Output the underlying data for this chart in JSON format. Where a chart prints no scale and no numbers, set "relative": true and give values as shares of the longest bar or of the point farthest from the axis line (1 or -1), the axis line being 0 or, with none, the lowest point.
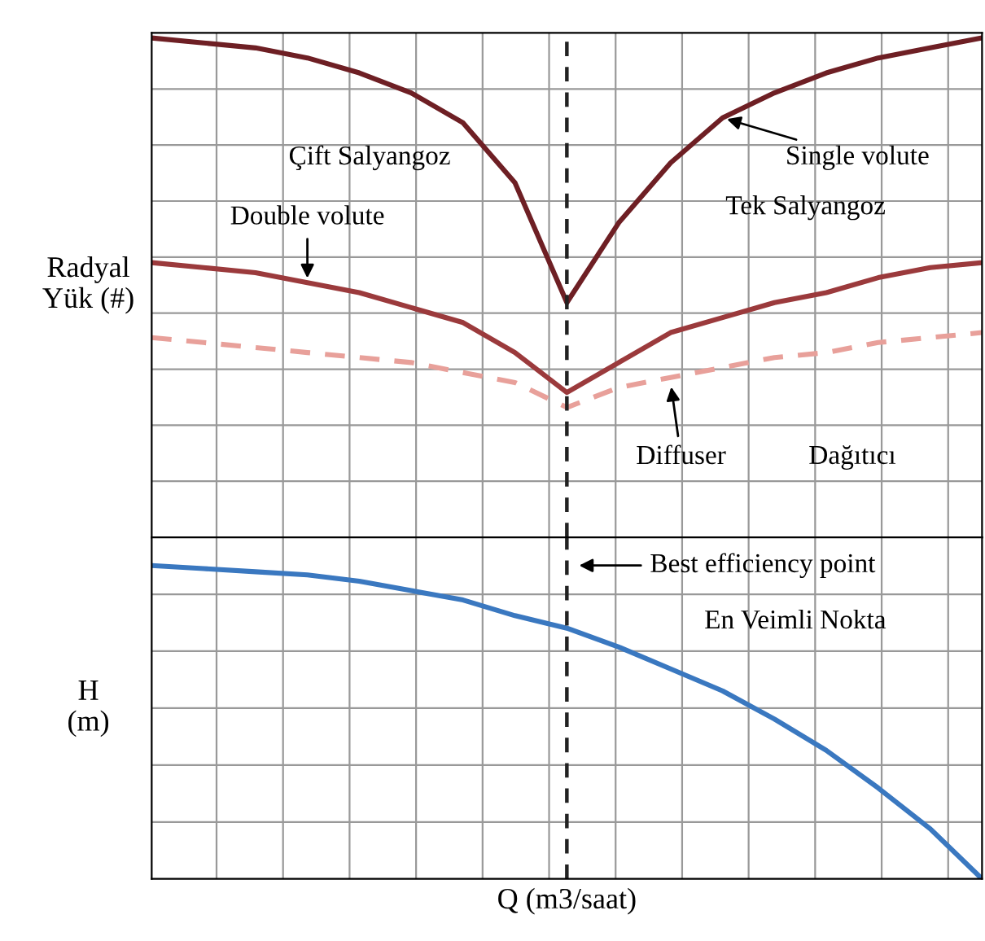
{
  "chart_data": [
    {
      "type": "line",
      "relative": true,
      "ylabel": "Radyal\nYük (#)",
      "grid": true,
      "legend": false,
      "categories": [
        null,
        null,
        null,
        null,
        null,
        null,
        null,
        null,
        null,
        null,
        null,
        null,
        null,
        null,
        null,
        null,
        null
      ],
      "series": [
        {
          "name": "Single volute",
          "color": "#6e1f24",
          "line_style": "solid",
          "values": [
            1.0,
            0.99,
            0.98,
            0.96,
            0.93,
            0.89,
            0.83,
            0.71,
            0.47,
            0.63,
            0.75,
            0.84,
            0.89,
            0.93,
            0.96,
            0.98,
            1.0
          ]
        },
        {
          "name": "Double volute",
          "color": "#9b3a3c",
          "line_style": "solid",
          "values": [
            0.55,
            0.54,
            0.53,
            0.51,
            0.49,
            0.46,
            0.43,
            0.37,
            0.29,
            0.35,
            0.41,
            0.44,
            0.47,
            0.49,
            0.52,
            0.54,
            0.55
          ]
        },
        {
          "name": "Diffuser",
          "color": "#e8a09a",
          "line_style": "dashed",
          "values": [
            0.4,
            0.39,
            0.38,
            0.37,
            0.36,
            0.35,
            0.33,
            0.31,
            0.26,
            0.3,
            0.32,
            0.34,
            0.36,
            0.37,
            0.39,
            0.4,
            0.41
          ]
        }
      ],
      "annotations": [
        "Çift Salyangoz",
        "Tek Salyangoz",
        "Dağıtıcı"
      ]
    },
    {
      "type": "line",
      "relative": true,
      "ylabel": "H\n(m)",
      "xlabel": "Q (m3/saat)",
      "grid": true,
      "legend": false,
      "categories": [
        null,
        null,
        null,
        null,
        null,
        null,
        null,
        null,
        null,
        null,
        null,
        null,
        null,
        null,
        null,
        null,
        null
      ],
      "series": [
        {
          "color": "#3a78c0",
          "line_style": "solid",
          "values": [
            1.0,
            0.99,
            0.98,
            0.97,
            0.95,
            0.92,
            0.89,
            0.84,
            0.8,
            0.74,
            0.67,
            0.6,
            0.51,
            0.41,
            0.29,
            0.16,
            0.0
          ]
        }
      ],
      "annotations": [
        "Best efficiency point",
        "En Veimli Nokta"
      ]
    }
  ]
}
